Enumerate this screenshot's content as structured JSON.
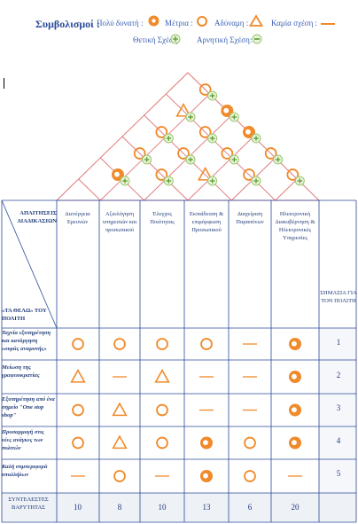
{
  "legend": {
    "title": "Συμβολισμοί :",
    "very_strong": "Πολύ δυνατή :",
    "medium": "Μέτρια :",
    "weak": "Αδύναμη :",
    "none": "Καμία σχέση :",
    "positive": "Θετική Σχέση:",
    "negative": "Αρνητική Σχέση:"
  },
  "header": {
    "requirements": "ΑΠΑΙΤΗΣΕΙΣ ΔΙΑΔΙΚΑΣΙΩΝ",
    "voice": "«ΤΑ ΘΕΛΩ» ΤΟΥ ΠΟΛΙΤΗ",
    "importance": "ΣΗΜΑΣΙΑ ΓΙΑ ΤΟΝ ΠΟΛΙΤΗ"
  },
  "columns": [
    "Διενέργεια Ερευνών",
    "Αξιολόγηση υπηρεσιών και προσωπικού",
    "Έλεγχος Ποιότητας",
    "Εκπαίδευση & επιμόρφωση Προσωπικού",
    "Διαχείριση Παραπόνων",
    "Ηλεκτρονική Διακυβέρνηση & Ηλεκτρονικές Υπηρεσίες"
  ],
  "rows": [
    {
      "label": "Ταχεία εξυπηρέτηση και κατάργηση «ουράς αναμονής»",
      "cells": [
        "medium",
        "medium",
        "medium",
        "medium",
        "none",
        "strong"
      ],
      "importance": "1"
    },
    {
      "label": "Μείωση της γραφειοκρατίας",
      "cells": [
        "weak",
        "none",
        "weak",
        "none",
        "none",
        "strong"
      ],
      "importance": "2"
    },
    {
      "label": "Εξυπηρέτηση από ένα σημείο \"One stop shop\"",
      "cells": [
        "medium",
        "weak",
        "medium",
        "none",
        "none",
        "strong"
      ],
      "importance": "3"
    },
    {
      "label": "Προσαρμογή στις νέες ανάγκες των πολιτών",
      "cells": [
        "medium",
        "weak",
        "medium",
        "strong",
        "medium",
        "strong"
      ],
      "importance": "4"
    },
    {
      "label": "Καλή συμπεριφορά υπαλλήλων",
      "cells": [
        "none",
        "medium",
        "none",
        "strong",
        "medium",
        "none"
      ],
      "importance": "5"
    }
  ],
  "totals": {
    "label": "ΣΥΝΤΕΛΕΣΤΕΣ ΒΑΡΥΤΗΤΑΣ",
    "values": [
      "10",
      "8",
      "10",
      "13",
      "6",
      "20"
    ]
  },
  "roof_symbols": [
    {
      "row": 1,
      "col": 1,
      "symbol": "medium",
      "effect": "positive"
    },
    {
      "row": 2,
      "col": 1,
      "symbol": "weak",
      "effect": "positive"
    },
    {
      "row": 2,
      "col": 2,
      "symbol": "strong",
      "effect": "positive"
    },
    {
      "row": 3,
      "col": 1,
      "symbol": "medium",
      "effect": "positive"
    },
    {
      "row": 3,
      "col": 2,
      "symbol": "medium",
      "effect": "positive"
    },
    {
      "row": 3,
      "col": 3,
      "symbol": "strong",
      "effect": "positive"
    },
    {
      "row": 4,
      "col": 1,
      "symbol": "medium",
      "effect": "positive"
    },
    {
      "row": 4,
      "col": 2,
      "symbol": "medium",
      "effect": "positive"
    },
    {
      "row": 4,
      "col": 3,
      "symbol": "medium",
      "effect": "positive"
    },
    {
      "row": 4,
      "col": 4,
      "symbol": "medium",
      "effect": "positive"
    },
    {
      "row": 5,
      "col": 1,
      "symbol": "strong",
      "effect": "positive"
    },
    {
      "row": 5,
      "col": 2,
      "symbol": "medium",
      "effect": "positive"
    },
    {
      "row": 5,
      "col": 3,
      "symbol": "weak",
      "effect": "positive"
    },
    {
      "row": 5,
      "col": 4,
      "symbol": "medium",
      "effect": "positive"
    },
    {
      "row": 5,
      "col": 5,
      "symbol": "medium",
      "effect": "positive"
    }
  ],
  "colors": {
    "symbol": "#f08a2a",
    "lines": "#e07878",
    "text": "#1f3a78",
    "footer_bg": "#eef1f6",
    "positive": "#9cc76c"
  }
}
